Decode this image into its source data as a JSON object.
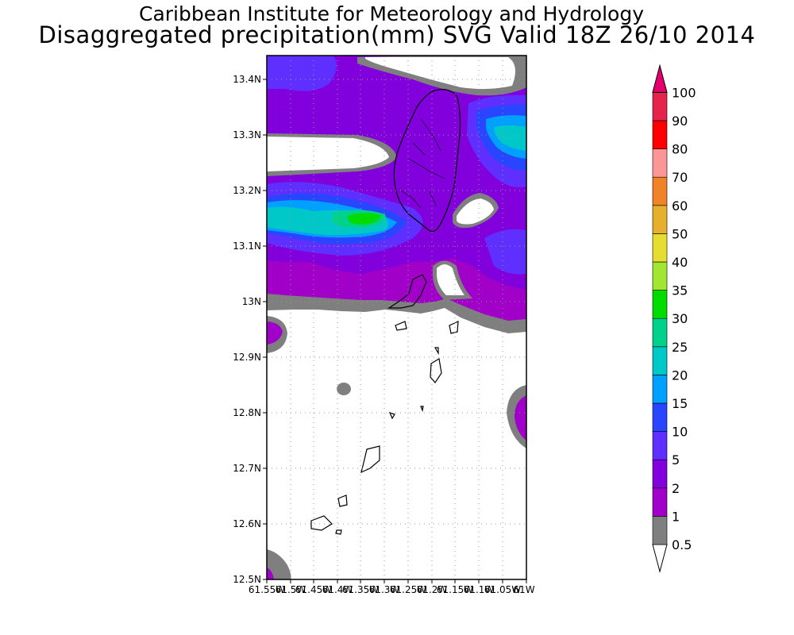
{
  "title": {
    "line1": "Caribbean Institute for Meteorology and Hydrology",
    "line2": "Disaggregated precipitation(mm) SVG Valid 18Z 26/10 2014"
  },
  "map": {
    "lat_labels": [
      "13.4N",
      "13.3N",
      "13.2N",
      "13.1N",
      "13N",
      "12.9N",
      "12.8N",
      "12.7N",
      "12.6N",
      "12.5N"
    ],
    "lon_labels": [
      "61.55W",
      "61.5W",
      "61.45W",
      "61.4W",
      "61.35W",
      "61.3W",
      "61.25W",
      "61.2W",
      "61.15W",
      "61.1W",
      "61.05W",
      "61W"
    ],
    "lat_range": [
      12.5,
      13.44
    ],
    "lon_range": [
      -61.55,
      -61.0
    ]
  },
  "colorbar": {
    "levels": [
      "0.5",
      "1",
      "2",
      "5",
      "10",
      "15",
      "20",
      "25",
      "30",
      "35",
      "40",
      "50",
      "60",
      "70",
      "80",
      "90",
      "100"
    ],
    "colors": [
      "#7f7f7f",
      "#a000c8",
      "#8200dc",
      "#5f2fff",
      "#2846ff",
      "#00a0ff",
      "#00c8c8",
      "#00d28c",
      "#00dc00",
      "#a0e632",
      "#e6dc32",
      "#e6af2d",
      "#f08228",
      "#fa9696",
      "#ff0000",
      "#e6234b",
      "#e6006e"
    ]
  }
}
